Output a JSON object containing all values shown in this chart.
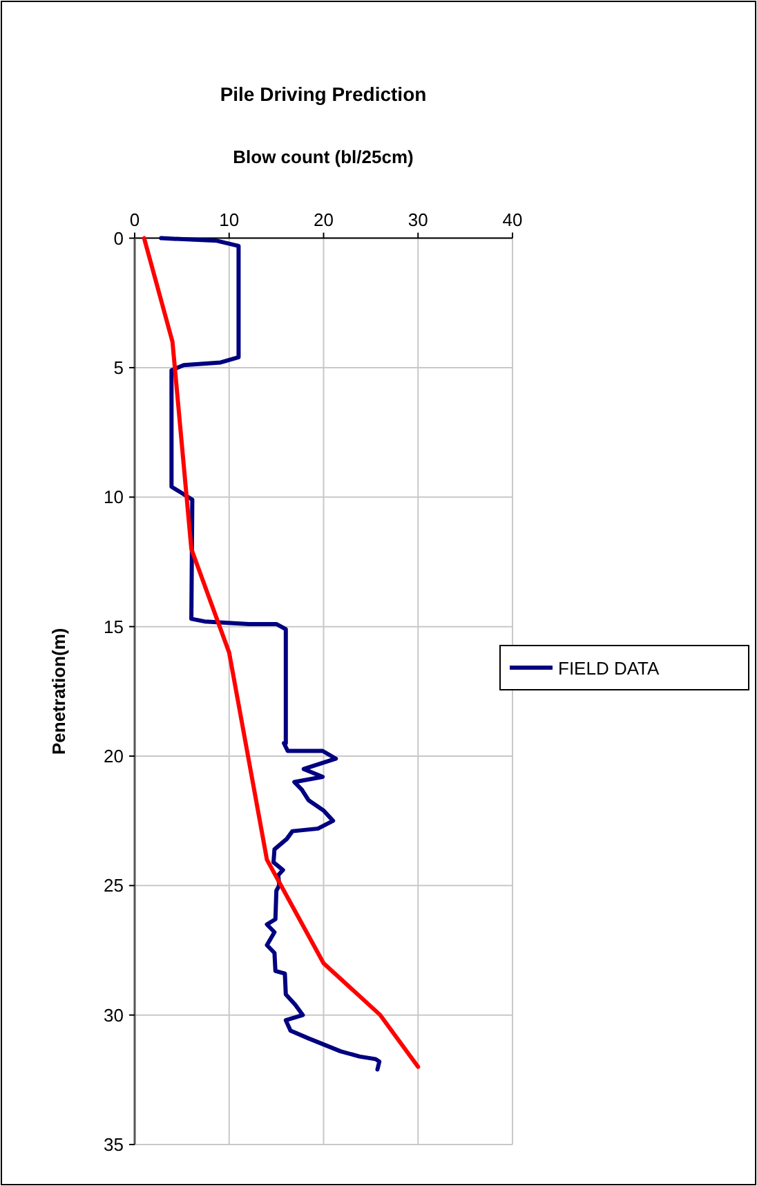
{
  "chart_data": {
    "type": "line",
    "title": "Pile Driving Prediction",
    "xlabel": "Blow count (bl/25cm)",
    "ylabel": "Penetration(m)",
    "xlim": [
      0,
      40
    ],
    "xticks": [
      0,
      10,
      20,
      30,
      40
    ],
    "ylim": [
      35,
      0
    ],
    "yticks": [
      0,
      5,
      10,
      15,
      20,
      25,
      30,
      35
    ],
    "grid": true,
    "legend": "right",
    "marker": "none",
    "line_style": "solid",
    "series": [
      {
        "name": "FIELD DATA",
        "color": "#000080",
        "x": [
          2.8,
          8.7,
          11.0,
          11.0,
          9.1,
          5.2,
          3.9,
          3.9,
          4.8,
          6.1,
          6.0,
          7.4,
          12.1,
          15.0,
          16.0,
          16.0,
          15.8,
          16.2,
          19.9,
          21.3,
          17.9,
          19.9,
          16.9,
          17.7,
          18.4,
          20.0,
          21.0,
          19.4,
          16.7,
          16.1,
          14.8,
          14.7,
          15.7,
          15.2,
          15.3,
          15.0,
          14.9,
          14.0,
          14.8,
          14.0,
          14.8,
          14.9,
          15.9,
          16.0,
          17.0,
          17.8,
          16.0,
          16.5,
          18.4,
          21.8,
          23.8,
          25.5,
          25.9,
          25.7
        ],
        "values": [
          0.0,
          0.1,
          0.3,
          4.6,
          4.8,
          4.9,
          5.1,
          9.6,
          9.8,
          10.1,
          14.7,
          14.8,
          14.9,
          14.9,
          15.1,
          19.5,
          19.5,
          19.8,
          19.8,
          20.1,
          20.5,
          20.8,
          21.0,
          21.3,
          21.7,
          22.1,
          22.5,
          22.8,
          22.9,
          23.2,
          23.6,
          24.1,
          24.4,
          24.6,
          25.0,
          25.2,
          26.3,
          26.5,
          26.8,
          27.3,
          27.6,
          28.3,
          28.4,
          29.2,
          29.6,
          30.0,
          30.2,
          30.6,
          30.9,
          31.4,
          31.6,
          31.7,
          31.8,
          32.1
        ]
      },
      {
        "color": "#ff0000",
        "x": [
          1,
          4,
          6,
          10,
          14,
          20,
          26,
          30
        ],
        "values": [
          0,
          4,
          12,
          16,
          24,
          28,
          30,
          32
        ]
      }
    ]
  }
}
